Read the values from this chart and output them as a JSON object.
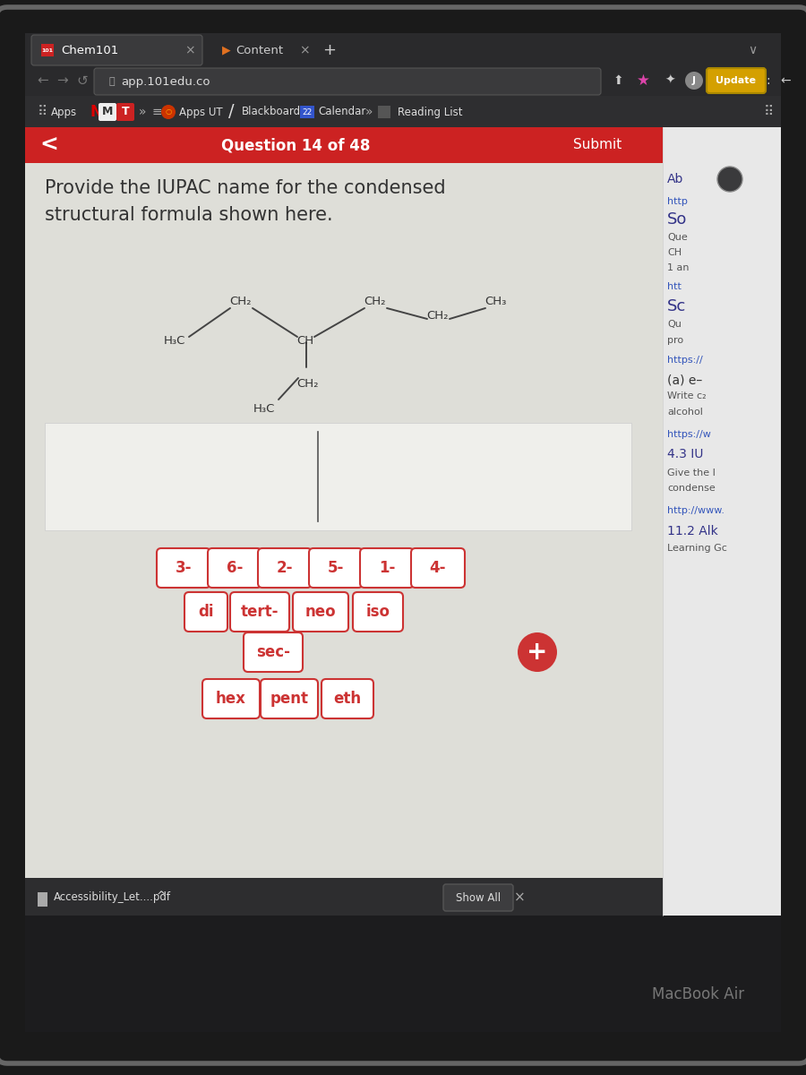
{
  "browser_bg": "#1c1c1e",
  "tab_bar_bg": "#2a2a2c",
  "tab_active_bg": "#3a3a3c",
  "tab_active_text": "Chem101",
  "tab_inactive_text": "Content",
  "url": "app.101edu.co",
  "url_bar_bg": "#2a2a2c",
  "toolbar_bg": "#2e2e30",
  "question_bar_bg": "#cc2222",
  "question_text": "Question 14 of 48",
  "submit_text": "Submit",
  "main_bg": "#deded8",
  "question_prompt_line1": "Provide the IUPAC name for the condensed",
  "question_prompt_line2": "structural formula shown here.",
  "right_panel_bg": "#e8e8e8",
  "answer_buttons_row1": [
    "3-",
    "6-",
    "2-",
    "5-",
    "1-",
    "4-"
  ],
  "answer_buttons_row2": [
    "di",
    "tert-",
    "neo",
    "iso"
  ],
  "answer_buttons_row3": [
    "sec-"
  ],
  "answer_buttons_row4": [
    "hex",
    "pent",
    "eth"
  ],
  "button_border_color": "#cc3333",
  "button_text_color": "#cc3333",
  "button_bg": "#ffffff",
  "plus_button_color": "#cc3333",
  "bottom_bar_bg": "#2d2d2f",
  "bottom_bar_text": "Accessibility_Let....pdf",
  "show_all_text": "Show All",
  "macbook_text": "MacBook Air",
  "bezel_color": "#1a1a1a",
  "bezel_edge": "#666666",
  "update_btn_color": "#d4a000",
  "bond_color": "#444444"
}
